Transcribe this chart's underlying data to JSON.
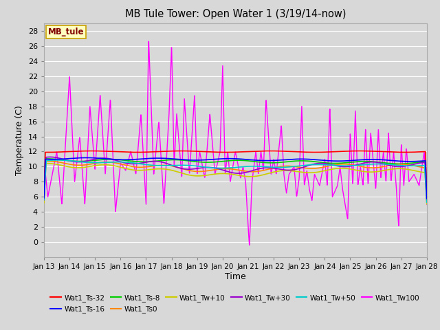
{
  "title": "MB Tule Tower: Open Water 1 (3/19/14-now)",
  "xlabel": "Time",
  "ylabel": "Temperature (C)",
  "ylim": [
    -2,
    29
  ],
  "yticks": [
    0,
    2,
    4,
    6,
    8,
    10,
    12,
    14,
    16,
    18,
    20,
    22,
    24,
    26,
    28
  ],
  "xtick_labels": [
    "Jan 13",
    "Jan 14",
    "Jan 15",
    "Jan 16",
    "Jan 17",
    "Jan 18",
    "Jan 19",
    "Jan 20",
    "Jan 21",
    "Jan 22",
    "Jan 23",
    "Jan 24",
    "Jan 25",
    "Jan 26",
    "Jan 27",
    "Jan 28"
  ],
  "background_color": "#d8d8d8",
  "plot_bg_color": "#d8d8d8",
  "grid_color": "#ffffff",
  "annotation_text": "MB_tule",
  "annotation_bg": "#ffffc0",
  "annotation_border": "#c8a000",
  "annotation_text_color": "#800000",
  "series": [
    {
      "label": "Wat1_Ts-32",
      "color": "#ff0000",
      "linewidth": 1.2,
      "zorder": 4
    },
    {
      "label": "Wat1_Ts-16",
      "color": "#0000ff",
      "linewidth": 1.2,
      "zorder": 4
    },
    {
      "label": "Wat1_Ts-8",
      "color": "#00cc00",
      "linewidth": 1.2,
      "zorder": 3
    },
    {
      "label": "Wat1_Ts0",
      "color": "#ff8800",
      "linewidth": 1.2,
      "zorder": 3
    },
    {
      "label": "Wat1_Tw+10",
      "color": "#cccc00",
      "linewidth": 1.2,
      "zorder": 3
    },
    {
      "label": "Wat1_Tw+30",
      "color": "#9900cc",
      "linewidth": 1.2,
      "zorder": 3
    },
    {
      "label": "Wat1_Tw+50",
      "color": "#00cccc",
      "linewidth": 1.2,
      "zorder": 3
    },
    {
      "label": "Wat1_Tw100",
      "color": "#ff00ff",
      "linewidth": 1.0,
      "zorder": 2
    }
  ]
}
